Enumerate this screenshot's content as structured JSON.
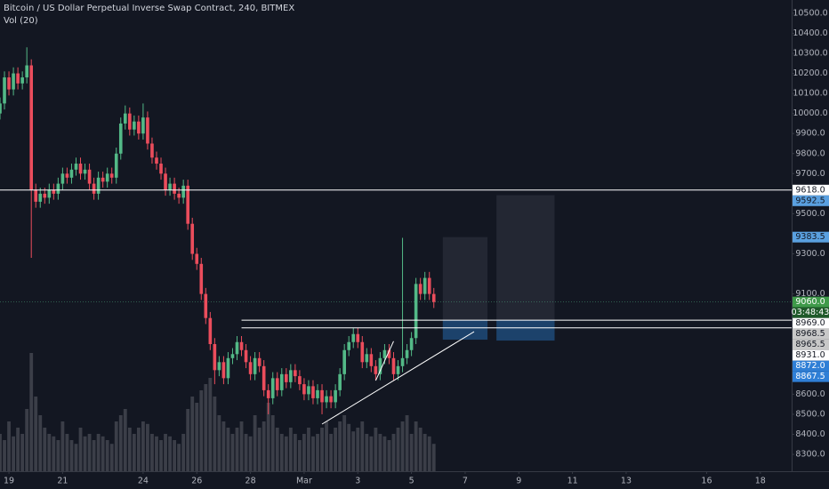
{
  "chart_data": {
    "type": "candlestick",
    "title": "Bitcoin / US Dollar Perpetual Inverse Swap Contract, 240, BITMEX",
    "subtitle": "Vol (20)",
    "up_color": "#53b987",
    "down_color": "#eb4d5c",
    "volume_color": "#3b3e48",
    "line_color": "#ffffff",
    "x": [
      0,
      1,
      2,
      3,
      4,
      5,
      6,
      7,
      8,
      9,
      10,
      11,
      12,
      13,
      14,
      15,
      16,
      17,
      18,
      19,
      20,
      21,
      22,
      23,
      24,
      25,
      26,
      27,
      28,
      29,
      30,
      31,
      32,
      33,
      34,
      35,
      36,
      37,
      38,
      39,
      40,
      41,
      42,
      43,
      44,
      45,
      46,
      47,
      48,
      49,
      50,
      51,
      52,
      53,
      54,
      55,
      56,
      57,
      58,
      59,
      60,
      61,
      62,
      63,
      64,
      65,
      66,
      67,
      68,
      69,
      70,
      71,
      72,
      73,
      74,
      75,
      76,
      77,
      78,
      79,
      80,
      81,
      82,
      83,
      84,
      85,
      86,
      87,
      88,
      89,
      90,
      91,
      92,
      93,
      94,
      95,
      96,
      97
    ],
    "open": [
      10000,
      10050,
      10180,
      10120,
      10200,
      10150,
      10180,
      10240,
      9620,
      9560,
      9600,
      9580,
      9620,
      9600,
      9650,
      9700,
      9680,
      9720,
      9750,
      9700,
      9720,
      9650,
      9600,
      9680,
      9660,
      9700,
      9680,
      9800,
      9950,
      10000,
      9920,
      9960,
      9900,
      9980,
      9850,
      9780,
      9750,
      9700,
      9620,
      9650,
      9600,
      9580,
      9640,
      9450,
      9300,
      9250,
      9100,
      8980,
      8850,
      8720,
      8760,
      8680,
      8780,
      8800,
      8860,
      8820,
      8760,
      8700,
      8780,
      8740,
      8620,
      8580,
      8680,
      8620,
      8700,
      8660,
      8720,
      8690,
      8650,
      8600,
      8640,
      8580,
      8620,
      8560,
      8590,
      8560,
      8620,
      8700,
      8820,
      8860,
      8900,
      8860,
      8760,
      8800,
      8740,
      8700,
      8780,
      8820,
      8780,
      8700,
      8740,
      8780,
      8820,
      8880,
      9150,
      9100,
      9180,
      9100
    ],
    "high": [
      10080,
      10210,
      10210,
      10230,
      10230,
      10210,
      10330,
      10270,
      9650,
      9630,
      9630,
      9650,
      9650,
      9680,
      9730,
      9730,
      9750,
      9780,
      9780,
      9750,
      9750,
      9680,
      9710,
      9710,
      9730,
      9730,
      9830,
      9980,
      10040,
      10030,
      9990,
      9990,
      10050,
      10010,
      9880,
      9810,
      9780,
      9730,
      9680,
      9680,
      9630,
      9670,
      9670,
      9480,
      9330,
      9280,
      9130,
      9010,
      8880,
      8790,
      8790,
      8810,
      8830,
      8890,
      8890,
      8850,
      8790,
      8810,
      8810,
      8770,
      8650,
      8710,
      8710,
      8730,
      8730,
      8750,
      8750,
      8720,
      8680,
      8670,
      8670,
      8650,
      8650,
      8620,
      8620,
      8650,
      8730,
      8850,
      8890,
      8930,
      8930,
      8890,
      8830,
      8830,
      8770,
      8810,
      8850,
      8850,
      8810,
      8770,
      9380,
      8850,
      8910,
      9180,
      9180,
      9210,
      9210,
      9130
    ],
    "low": [
      9970,
      10020,
      10090,
      10090,
      10120,
      10120,
      10150,
      9280,
      9530,
      9530,
      9550,
      9550,
      9570,
      9570,
      9620,
      9650,
      9650,
      9690,
      9670,
      9670,
      9620,
      9570,
      9570,
      9630,
      9630,
      9650,
      9650,
      9770,
      9920,
      9890,
      9890,
      9870,
      9870,
      9820,
      9750,
      9720,
      9670,
      9590,
      9590,
      9570,
      9550,
      9550,
      9420,
      9270,
      9220,
      9070,
      8950,
      8820,
      8650,
      8690,
      8650,
      8650,
      8750,
      8770,
      8790,
      8730,
      8670,
      8670,
      8710,
      8590,
      8500,
      8550,
      8590,
      8590,
      8630,
      8630,
      8660,
      8620,
      8570,
      8570,
      8550,
      8550,
      8500,
      8530,
      8530,
      8530,
      8590,
      8670,
      8790,
      8830,
      8830,
      8730,
      8730,
      8710,
      8670,
      8670,
      8750,
      8750,
      8670,
      8670,
      8710,
      8750,
      8790,
      8850,
      9070,
      9070,
      9070,
      9030
    ],
    "close": [
      10050,
      10180,
      10120,
      10200,
      10150,
      10180,
      10240,
      9620,
      9560,
      9600,
      9580,
      9620,
      9600,
      9650,
      9700,
      9680,
      9720,
      9750,
      9700,
      9720,
      9650,
      9600,
      9680,
      9660,
      9700,
      9680,
      9800,
      9950,
      10000,
      9920,
      9960,
      9900,
      9980,
      9850,
      9780,
      9750,
      9700,
      9620,
      9650,
      9600,
      9580,
      9640,
      9450,
      9300,
      9250,
      9100,
      8980,
      8850,
      8720,
      8760,
      8680,
      8780,
      8800,
      8860,
      8820,
      8760,
      8700,
      8780,
      8740,
      8620,
      8580,
      8680,
      8620,
      8700,
      8660,
      8720,
      8690,
      8650,
      8600,
      8640,
      8580,
      8620,
      8560,
      8590,
      8560,
      8620,
      8700,
      8820,
      8860,
      8900,
      8860,
      8760,
      8800,
      8740,
      8700,
      8780,
      8820,
      8780,
      8700,
      8740,
      8780,
      8820,
      8880,
      9150,
      9100,
      9180,
      9100,
      9060
    ],
    "volume": [
      30,
      25,
      40,
      28,
      35,
      30,
      50,
      95,
      60,
      45,
      35,
      30,
      28,
      25,
      40,
      30,
      25,
      22,
      35,
      28,
      30,
      25,
      30,
      28,
      25,
      22,
      40,
      45,
      50,
      35,
      30,
      35,
      40,
      38,
      30,
      28,
      25,
      30,
      28,
      25,
      22,
      30,
      50,
      60,
      55,
      65,
      70,
      75,
      60,
      45,
      40,
      35,
      30,
      35,
      40,
      30,
      28,
      45,
      35,
      40,
      55,
      45,
      35,
      30,
      28,
      35,
      30,
      25,
      30,
      35,
      28,
      30,
      35,
      40,
      30,
      35,
      40,
      45,
      38,
      32,
      35,
      40,
      30,
      28,
      35,
      30,
      28,
      25,
      30,
      35,
      40,
      45,
      30,
      40,
      35,
      30,
      28,
      22
    ],
    "vlim": [
      0,
      100
    ],
    "xlim": [
      0,
      177
    ],
    "ylim": [
      8216,
      10566
    ],
    "xticks": [
      {
        "value": 2,
        "label": "19"
      },
      {
        "value": 14,
        "label": "21"
      },
      {
        "value": 32,
        "label": "24"
      },
      {
        "value": 44,
        "label": "26"
      },
      {
        "value": 56,
        "label": "28"
      },
      {
        "value": 68,
        "label": "Mar"
      },
      {
        "value": 80,
        "label": "3"
      },
      {
        "value": 92,
        "label": "5"
      },
      {
        "value": 104,
        "label": "7"
      },
      {
        "value": 116,
        "label": "9"
      },
      {
        "value": 128,
        "label": "11"
      },
      {
        "value": 140,
        "label": "13"
      },
      {
        "value": 158,
        "label": "16"
      },
      {
        "value": 170,
        "label": "18"
      }
    ],
    "yticks": [
      {
        "value": 10500,
        "label": "10500.0"
      },
      {
        "value": 10400,
        "label": "10400.0"
      },
      {
        "value": 10300,
        "label": "10300.0"
      },
      {
        "value": 10200,
        "label": "10200.0"
      },
      {
        "value": 10100,
        "label": "10100.0"
      },
      {
        "value": 10000,
        "label": "10000.0"
      },
      {
        "value": 9900,
        "label": "9900.0"
      },
      {
        "value": 9800,
        "label": "9800.0"
      },
      {
        "value": 9700,
        "label": "9700.0"
      },
      {
        "value": 9500,
        "label": "9500.0"
      },
      {
        "value": 9300,
        "label": "9300.0"
      },
      {
        "value": 9100,
        "label": "9100.0"
      },
      {
        "value": 8600,
        "label": "8600.0"
      },
      {
        "value": 8500,
        "label": "8500.0"
      },
      {
        "value": 8400,
        "label": "8400.0"
      },
      {
        "value": 8300,
        "label": "8300.0"
      }
    ],
    "horizontal_lines": [
      9618
    ],
    "rays": [
      {
        "value": 8969,
        "start": 54
      },
      {
        "value": 8931,
        "start": 54
      }
    ],
    "trendlines": [
      {
        "x": [
          72,
          106
        ],
        "y": [
          8451,
          8912
        ]
      },
      {
        "x": [
          84,
          88
        ],
        "y": [
          8668,
          8864
        ]
      }
    ],
    "positions": [
      {
        "x": [
          99,
          109
        ],
        "target": 9383.5,
        "entry": 8969,
        "stop": 8872
      },
      {
        "x": [
          111,
          124
        ],
        "target": 9592.5,
        "entry": 8969,
        "stop": 8867.5
      }
    ],
    "price_tags": [
      {
        "value": 9618,
        "label": "9618.0",
        "color": "#ffffff",
        "text_color": "#131722"
      },
      {
        "value": 9592.5,
        "label": "9592.5",
        "color": "#5aa0e0",
        "text_color": "#131722"
      },
      {
        "value": 9383.5,
        "label": "9383.5",
        "color": "#5aa0e0",
        "text_color": "#131722"
      },
      {
        "value": 9060,
        "label": "9060.0",
        "color": "#3f9a4a",
        "text_color": "#ffffff"
      },
      {
        "value": 8969,
        "label": "8969.0",
        "color": "#ffffff",
        "text_color": "#131722"
      },
      {
        "value": 8968.5,
        "label": "8968.5",
        "color": "#c8c8c8",
        "text_color": "#131722"
      },
      {
        "value": 8965.5,
        "label": "8965.5",
        "color": "#c8c8c8",
        "text_color": "#131722"
      },
      {
        "value": 8931,
        "label": "8931.0",
        "color": "#ffffff",
        "text_color": "#131722"
      },
      {
        "value": 8872,
        "label": "8872.0",
        "color": "#2f7fd6",
        "text_color": "#ffffff"
      },
      {
        "value": 8867.5,
        "label": "8867.5",
        "color": "#2f7fd6",
        "text_color": "#ffffff"
      }
    ],
    "countdown": "03:48:43",
    "countdown_color": "#1f5a2a"
  }
}
